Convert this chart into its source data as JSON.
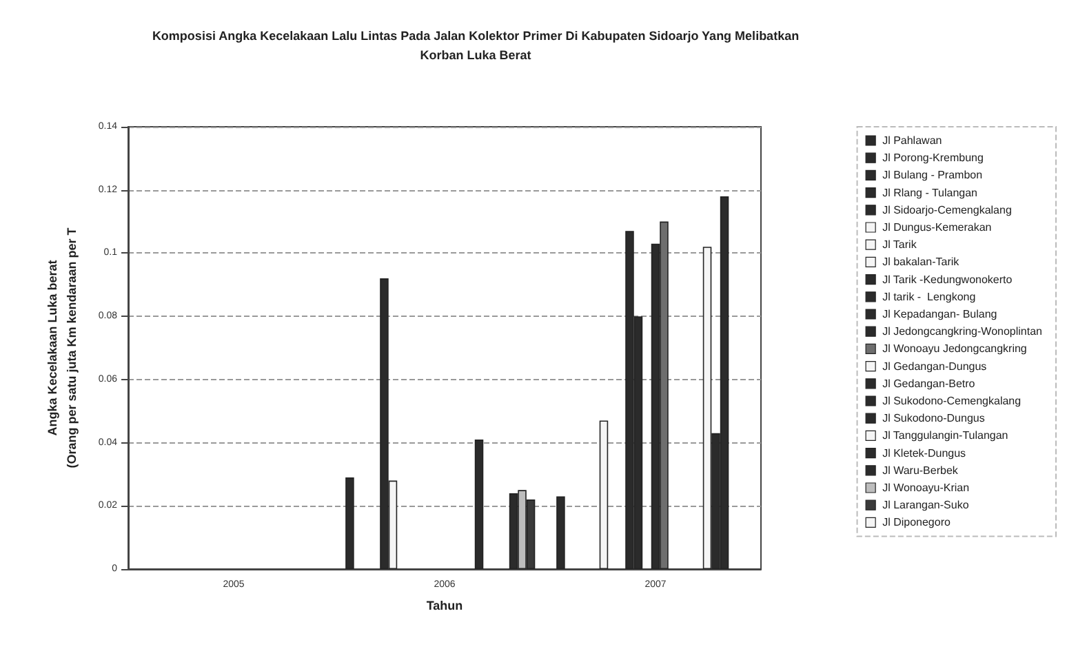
{
  "chart_data": {
    "type": "bar",
    "title": "Komposisi Angka Kecelakaan Lalu Lintas Pada Jalan Kolektor Primer Di Kabupaten Sidoarjo Yang Melibatkan\nKorban Luka Berat",
    "xlabel": "Tahun",
    "ylabel": "Angka Kecelakaan Luka berat\n(Orang per satu juta Km kendaraan per T",
    "categories": [
      "2005",
      "2006",
      "2007"
    ],
    "ylim": [
      0,
      0.14
    ],
    "yticks": [
      0,
      0.02,
      0.04,
      0.06,
      0.08,
      0.1,
      0.12,
      0.14
    ],
    "grid": "y",
    "legend": "right",
    "series": [
      {
        "name": "Jl Pahlawan",
        "color": "#2b2b2b",
        "values": [
          null,
          0.029,
          0.023
        ]
      },
      {
        "name": "Jl Porong-Krembung",
        "color": "#2b2b2b",
        "values": [
          null,
          null,
          null
        ]
      },
      {
        "name": "Jl Bulang - Prambon",
        "color": "#2b2b2b",
        "values": [
          null,
          null,
          null
        ]
      },
      {
        "name": "Jl Rlang - Tulangan",
        "color": "#2b2b2b",
        "values": [
          null,
          null,
          null
        ]
      },
      {
        "name": "Jl Sidoarjo-Cemengkalang",
        "color": "#2b2b2b",
        "values": [
          null,
          0.092,
          null
        ]
      },
      {
        "name": "Jl Dungus-Kemerakan",
        "color": "#f5f5f5",
        "values": [
          null,
          0.028,
          0.047
        ]
      },
      {
        "name": "Jl Tarik",
        "color": "#f5f5f5",
        "values": [
          null,
          null,
          null
        ]
      },
      {
        "name": "Jl bakalan-Tarik",
        "color": "#f5f5f5",
        "values": [
          null,
          null,
          null
        ]
      },
      {
        "name": "Jl Tarik -Kedungwonokerto",
        "color": "#2b2b2b",
        "values": [
          null,
          null,
          0.107
        ]
      },
      {
        "name": "Jl tarik -  Lengkong",
        "color": "#2b2b2b",
        "values": [
          null,
          null,
          0.08
        ]
      },
      {
        "name": "Jl Kepadangan- Bulang",
        "color": "#2b2b2b",
        "values": [
          null,
          null,
          null
        ]
      },
      {
        "name": "Jl Jedongcangkring-Wonoplintan",
        "color": "#2b2b2b",
        "values": [
          null,
          null,
          0.103
        ]
      },
      {
        "name": "Jl Wonoayu Jedongcangkring",
        "color": "#6e6e6e",
        "values": [
          null,
          null,
          0.11
        ]
      },
      {
        "name": "Jl Gedangan-Dungus",
        "color": "#f5f5f5",
        "values": [
          null,
          null,
          null
        ]
      },
      {
        "name": "Jl Gedangan-Betro",
        "color": "#2b2b2b",
        "values": [
          null,
          null,
          null
        ]
      },
      {
        "name": "Jl Sukodono-Cemengkalang",
        "color": "#2b2b2b",
        "values": [
          null,
          0.041,
          null
        ]
      },
      {
        "name": "Jl Sukodono-Dungus",
        "color": "#2b2b2b",
        "values": [
          null,
          null,
          null
        ]
      },
      {
        "name": "Jl Tanggulangin-Tulangan",
        "color": "#f5f5f5",
        "values": [
          null,
          null,
          0.102
        ]
      },
      {
        "name": "Jl Kletek-Dungus",
        "color": "#2b2b2b",
        "values": [
          null,
          null,
          0.043
        ]
      },
      {
        "name": "Jl Waru-Berbek",
        "color": "#2b2b2b",
        "values": [
          null,
          0.024,
          0.118
        ]
      },
      {
        "name": "Jl Wonoayu-Krian",
        "color": "#bdbdbd",
        "values": [
          null,
          0.025,
          null
        ]
      },
      {
        "name": "Jl Larangan-Suko",
        "color": "#3a3a3a",
        "values": [
          null,
          0.022,
          null
        ]
      },
      {
        "name": "Jl Diponegoro",
        "color": "#f5f5f5",
        "values": [
          null,
          null,
          null
        ]
      }
    ]
  }
}
